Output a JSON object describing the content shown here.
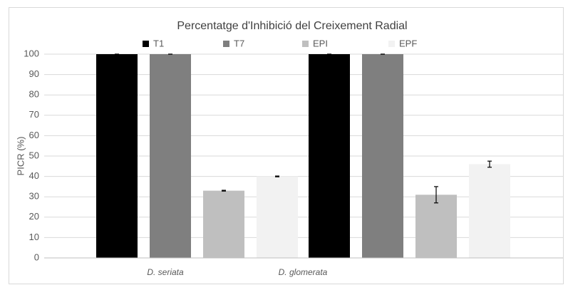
{
  "chart_data": {
    "type": "bar",
    "title": "Percentatge d'Inhibició del Creixement Radial",
    "y_label": "PICR (%)",
    "categories": [
      "D. seriata",
      "D. glomerata"
    ],
    "series": [
      {
        "name": "T1",
        "color": "#000000",
        "values": [
          100,
          100
        ],
        "errors": [
          0,
          0
        ]
      },
      {
        "name": "T7",
        "color": "#7f7f7f",
        "values": [
          100,
          100
        ],
        "errors": [
          0,
          0
        ]
      },
      {
        "name": "EPI",
        "color": "#bfbfbf",
        "values": [
          33,
          31
        ],
        "errors": [
          0.2,
          4
        ]
      },
      {
        "name": "EPF",
        "color": "#f2f2f2",
        "values": [
          40,
          46
        ],
        "errors": [
          0.2,
          1.5
        ]
      }
    ],
    "ylim": [
      0,
      100
    ],
    "yticks": [
      0,
      10,
      20,
      30,
      40,
      50,
      60,
      70,
      80,
      90,
      100
    ],
    "grid": true,
    "legend": "top"
  }
}
